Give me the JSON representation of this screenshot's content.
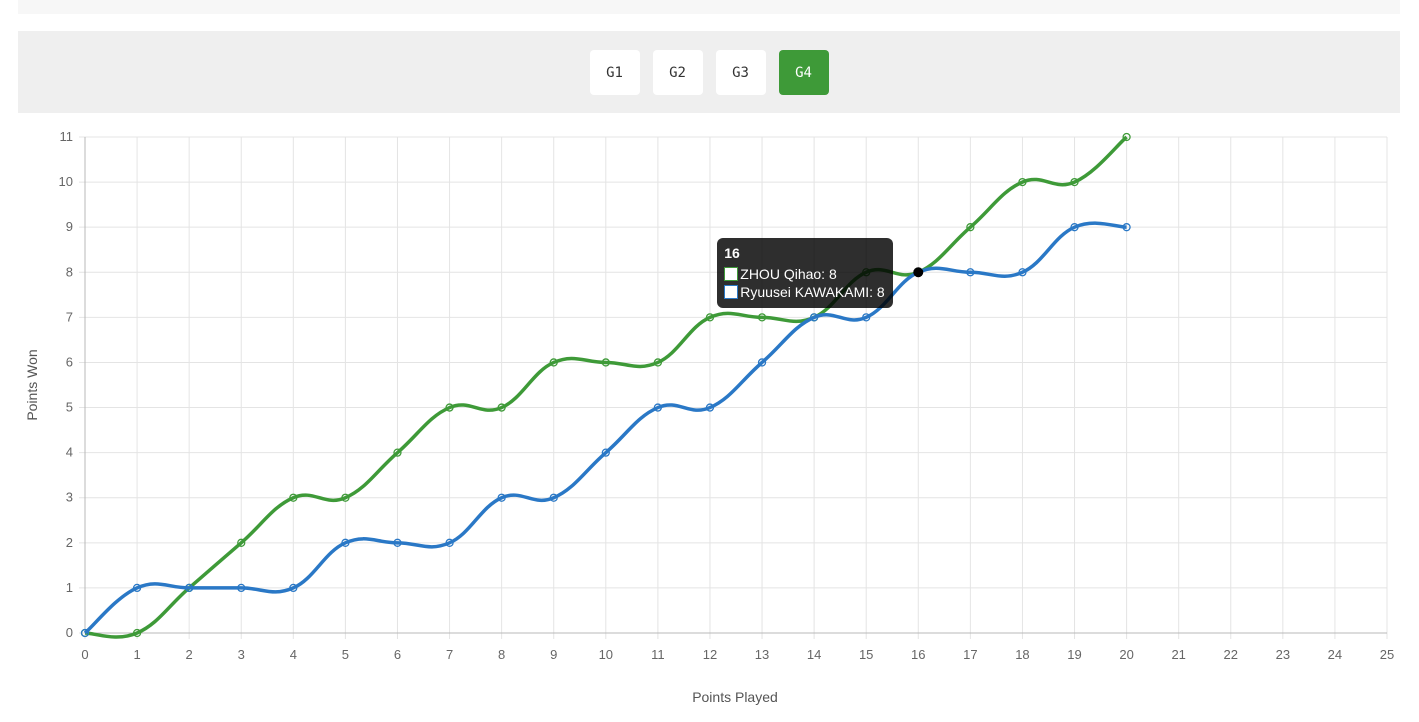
{
  "tabs": [
    {
      "label": "G1",
      "active": false
    },
    {
      "label": "G2",
      "active": false
    },
    {
      "label": "G3",
      "active": false
    },
    {
      "label": "G4",
      "active": true
    }
  ],
  "chart_data": {
    "type": "line",
    "xlabel": "Points Played",
    "ylabel": "Points Won",
    "xlim": [
      0,
      25
    ],
    "ylim": [
      0,
      11
    ],
    "grid": true,
    "series": [
      {
        "name": "ZHOU Qihao",
        "color": "#3e9a38",
        "x": [
          0,
          1,
          2,
          3,
          4,
          5,
          6,
          7,
          8,
          9,
          10,
          11,
          12,
          13,
          14,
          15,
          16,
          17,
          18,
          19,
          20
        ],
        "values": [
          0,
          0,
          1,
          2,
          3,
          3,
          4,
          5,
          5,
          6,
          6,
          6,
          7,
          7,
          7,
          8,
          8,
          9,
          10,
          10,
          11
        ]
      },
      {
        "name": "Ryuusei KAWAKAMI",
        "color": "#2a78c6",
        "x": [
          0,
          1,
          2,
          3,
          4,
          5,
          6,
          7,
          8,
          9,
          10,
          11,
          12,
          13,
          14,
          15,
          16,
          17,
          18,
          19,
          20
        ],
        "values": [
          0,
          1,
          1,
          1,
          1,
          2,
          2,
          2,
          3,
          3,
          4,
          5,
          5,
          6,
          7,
          7,
          8,
          8,
          8,
          9,
          9
        ]
      }
    ],
    "tooltip": {
      "title": "16",
      "rows": [
        {
          "label": "ZHOU Qihao: 8",
          "color": "#3e9a38"
        },
        {
          "label": "Ryuusei KAWAKAMI: 8",
          "color": "#2a78c6"
        }
      ],
      "x": 16,
      "y": 8
    }
  }
}
